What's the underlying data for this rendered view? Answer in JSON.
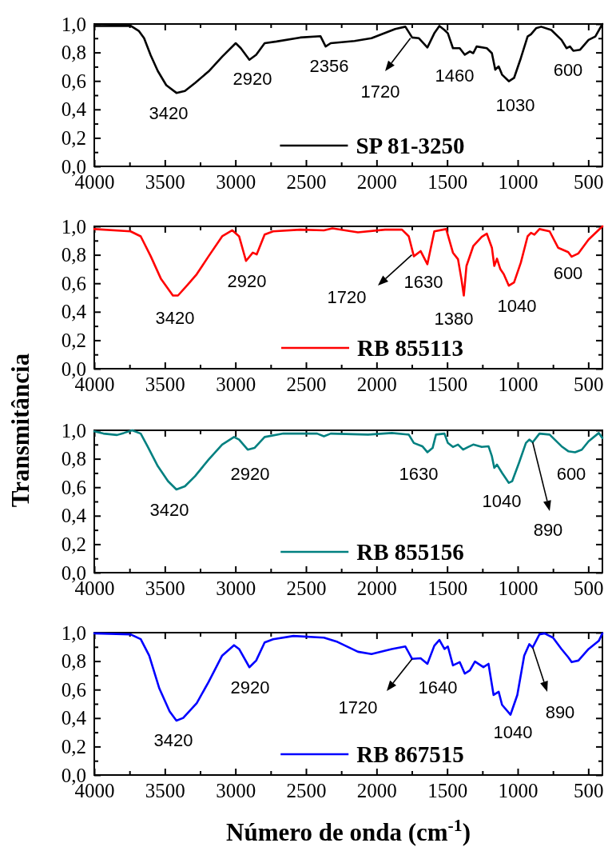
{
  "chart_data": [
    {
      "type": "line",
      "legend": "bottom",
      "xlim": [
        4000,
        400
      ],
      "ylim": [
        0,
        1
      ],
      "xticks": [
        4000,
        {
          "value": 3750,
          "label": null
        },
        3500,
        {
          "value": 3250,
          "label": null
        },
        3000,
        {
          "value": 2750,
          "label": null
        },
        2500,
        {
          "value": 2250,
          "label": null
        },
        2000,
        {
          "value": 1750,
          "label": null
        },
        1500,
        {
          "value": 1250,
          "label": null
        },
        1000,
        {
          "value": 750,
          "label": null
        },
        500
      ],
      "yticks": [
        {
          "value": 0,
          "label": "0,0"
        },
        {
          "value": 0.1,
          "label": null
        },
        {
          "value": 0.2,
          "label": "0,2"
        },
        {
          "value": 0.3,
          "label": null
        },
        {
          "value": 0.4,
          "label": "0,4"
        },
        {
          "value": 0.5,
          "label": null
        },
        {
          "value": 0.6,
          "label": "0,6"
        },
        {
          "value": 0.7,
          "label": null
        },
        {
          "value": 0.8,
          "label": "0,8"
        },
        {
          "value": 0.9,
          "label": null
        },
        {
          "value": 1,
          "label": "1,0"
        }
      ],
      "series": [
        {
          "name": "SP 81-3250",
          "color": "#000000",
          "x": [
            4000,
            3743,
            3683,
            3647,
            3600,
            3550,
            3490,
            3418,
            3358,
            3286,
            3190,
            3094,
            2998,
            2962,
            2901,
            2853,
            2793,
            2709,
            2541,
            2397,
            2361,
            2325,
            2156,
            2036,
            1868,
            1796,
            1748,
            1700,
            1640,
            1591,
            1555,
            1519,
            1495,
            1459,
            1411,
            1375,
            1339,
            1315,
            1291,
            1219,
            1183,
            1159,
            1135,
            1111,
            1063,
            1026,
            978,
            930,
            906,
            870,
            834,
            762,
            690,
            654,
            630,
            606,
            558,
            498,
            450,
            400
          ],
          "values": [
            0.986,
            0.988,
            0.95,
            0.9,
            0.78,
            0.67,
            0.57,
            0.516,
            0.53,
            0.586,
            0.667,
            0.77,
            0.865,
            0.83,
            0.749,
            0.784,
            0.865,
            0.877,
            0.905,
            0.914,
            0.842,
            0.865,
            0.881,
            0.9,
            0.965,
            0.981,
            0.905,
            0.9,
            0.835,
            0.935,
            0.986,
            0.958,
            0.935,
            0.83,
            0.83,
            0.784,
            0.807,
            0.795,
            0.842,
            0.83,
            0.795,
            0.679,
            0.702,
            0.644,
            0.598,
            0.621,
            0.76,
            0.912,
            0.928,
            0.97,
            0.981,
            0.958,
            0.888,
            0.83,
            0.842,
            0.812,
            0.819,
            0.888,
            0.912,
            1.0
          ]
        }
      ],
      "annotations": [
        "3420",
        "2920",
        "2356",
        {
          "text": "1720",
          "x": 1760,
          "y": 0.9
        },
        "1460",
        "1030",
        "600"
      ]
    },
    {
      "type": "line",
      "legend": "bottom",
      "xlim": [
        4000,
        400
      ],
      "ylim": [
        0,
        1
      ],
      "xticks": [
        4000,
        {
          "value": 3750,
          "label": null
        },
        3500,
        {
          "value": 3250,
          "label": null
        },
        3000,
        {
          "value": 2750,
          "label": null
        },
        2500,
        {
          "value": 2250,
          "label": null
        },
        2000,
        {
          "value": 1750,
          "label": null
        },
        1500,
        {
          "value": 1250,
          "label": null
        },
        1000,
        {
          "value": 750,
          "label": null
        },
        500
      ],
      "yticks": [
        {
          "value": 0,
          "label": "0,0"
        },
        {
          "value": 0.1,
          "label": null
        },
        {
          "value": 0.2,
          "label": "0,2"
        },
        {
          "value": 0.3,
          "label": null
        },
        {
          "value": 0.4,
          "label": "0,4"
        },
        {
          "value": 0.5,
          "label": null
        },
        {
          "value": 0.6,
          "label": "0,6"
        },
        {
          "value": 0.7,
          "label": null
        },
        {
          "value": 0.8,
          "label": "0,8"
        },
        {
          "value": 0.9,
          "label": null
        },
        {
          "value": 1,
          "label": "1,0"
        }
      ],
      "series": [
        {
          "name": "RB 855113",
          "color": "#ff0000",
          "x": [
            4000,
            3743,
            3671,
            3600,
            3527,
            3443,
            3407,
            3334,
            3274,
            3190,
            3094,
            3022,
            2974,
            2925,
            2877,
            2849,
            2793,
            2733,
            2541,
            2373,
            2313,
            2132,
            1940,
            1820,
            1772,
            1736,
            1688,
            1640,
            1591,
            1507,
            1459,
            1423,
            1399,
            1382,
            1363,
            1315,
            1255,
            1219,
            1183,
            1166,
            1147,
            1123,
            1099,
            1063,
            1026,
            978,
            930,
            906,
            882,
            846,
            774,
            714,
            642,
            618,
            570,
            498,
            400
          ],
          "values": [
            0.981,
            0.965,
            0.93,
            0.79,
            0.63,
            0.514,
            0.514,
            0.595,
            0.664,
            0.79,
            0.93,
            0.972,
            0.93,
            0.757,
            0.815,
            0.803,
            0.942,
            0.965,
            0.977,
            0.972,
            0.986,
            0.958,
            0.977,
            0.977,
            0.93,
            0.79,
            0.826,
            0.734,
            0.965,
            0.981,
            0.815,
            0.769,
            0.63,
            0.514,
            0.722,
            0.861,
            0.926,
            0.949,
            0.85,
            0.722,
            0.773,
            0.699,
            0.664,
            0.583,
            0.606,
            0.745,
            0.93,
            0.954,
            0.942,
            0.981,
            0.965,
            0.85,
            0.819,
            0.787,
            0.81,
            0.907,
            1.0
          ]
        }
      ],
      "annotations": [
        "3420",
        "2920",
        {
          "text": "1720",
          "x": 1750,
          "y": 0.8
        },
        "1630",
        "1380",
        "1040",
        "600"
      ]
    },
    {
      "type": "line",
      "ylabel": "Transmitância",
      "legend": "bottom",
      "xlim": [
        4000,
        400
      ],
      "ylim": [
        0,
        1
      ],
      "xticks": [
        4000,
        {
          "value": 3750,
          "label": null
        },
        3500,
        {
          "value": 3250,
          "label": null
        },
        3000,
        {
          "value": 2750,
          "label": null
        },
        2500,
        {
          "value": 2250,
          "label": null
        },
        2000,
        {
          "value": 1750,
          "label": null
        },
        1500,
        {
          "value": 1250,
          "label": null
        },
        1000,
        {
          "value": 750,
          "label": null
        },
        500
      ],
      "yticks": [
        {
          "value": 0,
          "label": "0,0"
        },
        {
          "value": 0.1,
          "label": null
        },
        {
          "value": 0.2,
          "label": "0,2"
        },
        {
          "value": 0.3,
          "label": null
        },
        {
          "value": 0.4,
          "label": "0,4"
        },
        {
          "value": 0.5,
          "label": null
        },
        {
          "value": 0.6,
          "label": "0,6"
        },
        {
          "value": 0.7,
          "label": null
        },
        {
          "value": 0.8,
          "label": "0,8"
        },
        {
          "value": 0.9,
          "label": null
        },
        {
          "value": 1,
          "label": "1,0"
        }
      ],
      "series": [
        {
          "name": "RB 855156",
          "color": "#008080",
          "x": [
            4000,
            3935,
            3839,
            3791,
            3731,
            3671,
            3623,
            3550,
            3478,
            3418,
            3358,
            3286,
            3190,
            3094,
            3010,
            2974,
            2913,
            2865,
            2793,
            2661,
            2421,
            2373,
            2325,
            2060,
            1892,
            1772,
            1736,
            1676,
            1640,
            1603,
            1579,
            1519,
            1495,
            1459,
            1423,
            1387,
            1351,
            1315,
            1255,
            1207,
            1183,
            1166,
            1147,
            1111,
            1063,
            1039,
            991,
            942,
            918,
            894,
            846,
            774,
            690,
            642,
            594,
            546,
            498,
            426,
            400
          ],
          "values": [
            0.993,
            0.977,
            0.967,
            0.981,
            1.0,
            0.977,
            0.888,
            0.748,
            0.643,
            0.584,
            0.607,
            0.678,
            0.794,
            0.9,
            0.953,
            0.935,
            0.864,
            0.876,
            0.953,
            0.977,
            0.977,
            0.958,
            0.977,
            0.97,
            0.981,
            0.97,
            0.911,
            0.888,
            0.846,
            0.876,
            0.97,
            0.977,
            0.911,
            0.883,
            0.9,
            0.864,
            0.883,
            0.9,
            0.883,
            0.888,
            0.818,
            0.736,
            0.759,
            0.701,
            0.631,
            0.643,
            0.771,
            0.911,
            0.935,
            0.916,
            0.977,
            0.97,
            0.888,
            0.853,
            0.846,
            0.864,
            0.923,
            0.981,
            0.946
          ]
        }
      ],
      "annotations": [
        "3420",
        "2920",
        "1630",
        "1040",
        {
          "text": "890",
          "x": 894,
          "y": 0.916
        },
        "600"
      ]
    },
    {
      "type": "line",
      "xlabel": "Número de onda (cm$^{-1}$)",
      "legend": "bottom",
      "xlim": [
        4000,
        400
      ],
      "ylim": [
        0,
        1
      ],
      "xticks": [
        4000,
        {
          "value": 3750,
          "label": null
        },
        3500,
        {
          "value": 3250,
          "label": null
        },
        3000,
        {
          "value": 2750,
          "label": null
        },
        2500,
        {
          "value": 2250,
          "label": null
        },
        2000,
        {
          "value": 1750,
          "label": null
        },
        1500,
        {
          "value": 1250,
          "label": null
        },
        1000,
        {
          "value": 750,
          "label": null
        },
        500
      ],
      "yticks": [
        {
          "value": 0,
          "label": "0,0"
        },
        {
          "value": 0.1,
          "label": null
        },
        {
          "value": 0.2,
          "label": "0,2"
        },
        {
          "value": 0.3,
          "label": null
        },
        {
          "value": 0.4,
          "label": "0,4"
        },
        {
          "value": 0.5,
          "label": null
        },
        {
          "value": 0.6,
          "label": "0,6"
        },
        {
          "value": 0.7,
          "label": null
        },
        {
          "value": 0.8,
          "label": "0,8"
        },
        {
          "value": 0.9,
          "label": null
        },
        {
          "value": 1,
          "label": "1,0"
        }
      ],
      "series": [
        {
          "name": "RB 867515",
          "color": "#0000ff",
          "x": [
            4000,
            3743,
            3671,
            3611,
            3539,
            3466,
            3418,
            3370,
            3274,
            3190,
            3094,
            3010,
            2974,
            2901,
            2853,
            2793,
            2733,
            2589,
            2373,
            2277,
            2132,
            2036,
            1892,
            1796,
            1748,
            1688,
            1640,
            1591,
            1555,
            1519,
            1495,
            1459,
            1411,
            1375,
            1339,
            1303,
            1243,
            1207,
            1171,
            1135,
            1111,
            1051,
            1003,
            954,
            918,
            894,
            846,
            810,
            750,
            690,
            642,
            618,
            570,
            498,
            426,
            400
          ],
          "values": [
            0.995,
            0.988,
            0.954,
            0.839,
            0.608,
            0.447,
            0.382,
            0.401,
            0.505,
            0.654,
            0.839,
            0.912,
            0.885,
            0.757,
            0.804,
            0.931,
            0.954,
            0.977,
            0.965,
            0.935,
            0.866,
            0.85,
            0.885,
            0.903,
            0.816,
            0.82,
            0.781,
            0.908,
            0.949,
            0.885,
            0.903,
            0.77,
            0.793,
            0.712,
            0.735,
            0.797,
            0.758,
            0.781,
            0.562,
            0.585,
            0.493,
            0.424,
            0.562,
            0.839,
            0.919,
            0.896,
            0.988,
            0.995,
            0.965,
            0.885,
            0.827,
            0.793,
            0.804,
            0.885,
            0.942,
            0.995
          ]
        }
      ],
      "annotations": [
        "3420",
        "2920",
        {
          "text": "1720",
          "x": 1748,
          "y": 0.816
        },
        "1640",
        "1040",
        {
          "text": "890",
          "x": 894,
          "y": 0.896
        }
      ]
    }
  ]
}
